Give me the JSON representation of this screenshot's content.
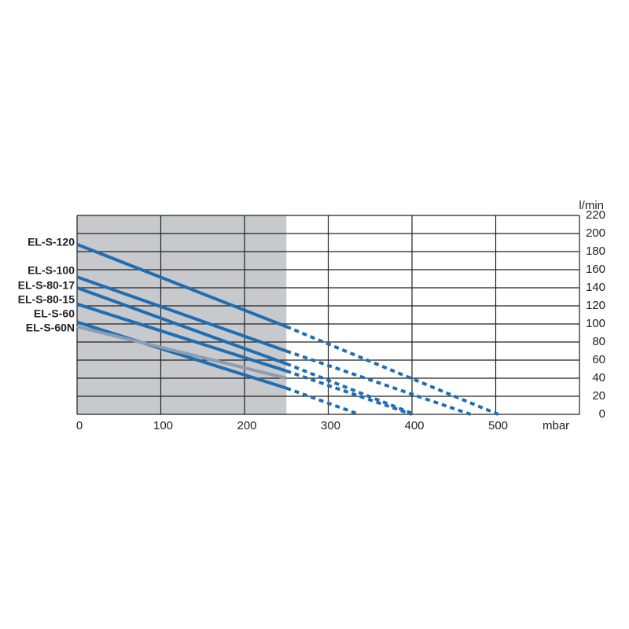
{
  "chart_data": {
    "type": "line",
    "x_label": "mbar",
    "y_label": "l/min",
    "xlim": [
      0,
      600
    ],
    "xticks": [
      0,
      100,
      200,
      300,
      400,
      500
    ],
    "ylim": [
      0,
      220
    ],
    "yticks": [
      0,
      20,
      40,
      60,
      80,
      100,
      120,
      140,
      160,
      180,
      200,
      220
    ],
    "grid": true,
    "shade_xlim": [
      0,
      250
    ],
    "shade_color": "#c8c9cc",
    "dashed_after": 250,
    "series": [
      {
        "name": "EL-S-120",
        "color": "#1f6db3",
        "x": [
          0,
          250,
          503
        ],
        "values": [
          188,
          97,
          0
        ]
      },
      {
        "name": "EL-S-100",
        "color": "#1f6db3",
        "x": [
          0,
          250,
          470
        ],
        "values": [
          152,
          70,
          0
        ]
      },
      {
        "name": "EL-S-80-17",
        "color": "#1f6db3",
        "x": [
          0,
          250,
          403
        ],
        "values": [
          140,
          56,
          0
        ]
      },
      {
        "name": "EL-S-80-15",
        "color": "#1f6db3",
        "x": [
          0,
          250,
          400
        ],
        "values": [
          122,
          48,
          0
        ]
      },
      {
        "name": "EL-S-60",
        "color": "#1f6db3",
        "x": [
          0,
          250,
          337
        ],
        "values": [
          102,
          29,
          0
        ]
      },
      {
        "name": "EL-S-60N",
        "color": "#8c9db3",
        "x": [
          0,
          250
        ],
        "values": [
          97,
          40
        ]
      }
    ]
  }
}
